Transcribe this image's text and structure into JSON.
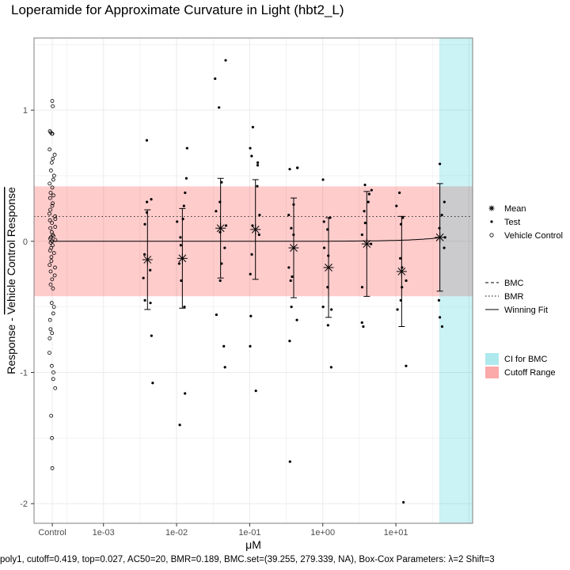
{
  "chart_data": {
    "type": "scatter",
    "title": "Loperamide for Approximate Curvature in Light (hbt2_L)",
    "xlabel": "μM",
    "ylabel_parts": [
      "Response",
      " - ",
      "Vehicle Control Response"
    ],
    "caption": "poly1, cutoff=0.419, top=0.027, AC50=20, BMR=0.189, BMC.set=(39.255, 279.339, NA), Box-Cox Parameters: λ=2 Shift=3",
    "x_scale": "log10",
    "x_ticks": [
      {
        "label": "Control",
        "kind": "control"
      },
      {
        "label": "1e-03",
        "value": 0.001
      },
      {
        "label": "1e-02",
        "value": 0.01
      },
      {
        "label": "1e-01",
        "value": 0.1
      },
      {
        "label": "1e+00",
        "value": 1
      },
      {
        "label": "1e+01",
        "value": 10
      }
    ],
    "y_ticks": [
      1,
      0,
      -1,
      -2
    ],
    "y_tick_labels": [
      "1",
      "0",
      "-1",
      "-2"
    ],
    "ylim": [
      -2.15,
      1.55
    ],
    "xlim_log10": [
      -3.95,
      2.05
    ],
    "control_log10": -3.7,
    "grid": true,
    "cutoff_range": [
      -0.419,
      0.419
    ],
    "bmr": 0.189,
    "bmc": 279.339,
    "ci_for_bmc": [
      39.255,
      300
    ],
    "winning_fit": {
      "model": "poly1",
      "top": 0.027,
      "at_conc": 39.255
    },
    "vehicle_control": [
      1.07,
      1.03,
      0.84,
      0.83,
      0.82,
      0.82,
      0.7,
      0.66,
      0.63,
      0.6,
      0.54,
      0.5,
      0.47,
      0.44,
      0.41,
      0.37,
      0.35,
      0.33,
      0.29,
      0.27,
      0.24,
      0.21,
      0.19,
      0.17,
      0.16,
      0.14,
      0.11,
      0.1,
      0.07,
      0.05,
      0.04,
      0.03,
      0.02,
      0.01,
      0.0,
      -0.01,
      -0.03,
      -0.05,
      -0.07,
      -0.09,
      -0.12,
      -0.15,
      -0.18,
      -0.2,
      -0.23,
      -0.26,
      -0.29,
      -0.33,
      -0.36,
      -0.47,
      -0.5,
      -0.55,
      -0.6,
      -0.67,
      -0.7,
      -0.74,
      -0.85,
      -0.95,
      -1.0,
      -1.05,
      -1.12,
      -1.33,
      -1.5,
      -1.73
    ],
    "test_groups": [
      {
        "conc": 0.004,
        "mean": -0.14,
        "err": 0.38,
        "points": [
          0.77,
          0.32,
          0.3,
          0.22,
          0.13,
          -0.1,
          -0.22,
          -0.28,
          -0.45,
          -0.47,
          -0.72,
          -1.08
        ]
      },
      {
        "conc": 0.012,
        "mean": -0.13,
        "err": 0.38,
        "points": [
          0.71,
          0.48,
          0.37,
          0.27,
          0.17,
          0.15,
          0.03,
          -0.03,
          -0.17,
          -0.3,
          -0.5,
          -1.16,
          -1.4
        ]
      },
      {
        "conc": 0.04,
        "mean": 0.1,
        "err": 0.38,
        "points": [
          1.38,
          1.24,
          1.02,
          0.45,
          0.3,
          0.23,
          0.12,
          0.07,
          -0.05,
          -0.17,
          -0.3,
          -0.56,
          -0.8,
          -0.96
        ]
      },
      {
        "conc": 0.12,
        "mean": 0.09,
        "err": 0.38,
        "points": [
          0.87,
          0.71,
          0.65,
          0.6,
          0.58,
          0.42,
          0.2,
          0.12,
          0.05,
          -0.1,
          -0.25,
          -0.57,
          -0.8,
          -1.14
        ]
      },
      {
        "conc": 0.4,
        "mean": -0.05,
        "err": 0.38,
        "points": [
          0.56,
          0.56,
          0.55,
          0.28,
          0.2,
          0.1,
          0.05,
          -0.2,
          -0.27,
          -0.3,
          -0.5,
          -0.6,
          -0.76,
          -1.68
        ]
      },
      {
        "conc": 1.2,
        "mean": -0.2,
        "err": 0.38,
        "points": [
          0.47,
          0.18,
          0.15,
          0.09,
          -0.05,
          -0.11,
          -0.35,
          -0.5,
          -0.52,
          -0.64,
          -0.96
        ]
      },
      {
        "conc": 4.0,
        "mean": -0.02,
        "err": 0.4,
        "points": [
          0.43,
          0.39,
          0.36,
          0.3,
          0.23,
          0.14,
          0.05,
          -0.02,
          -0.35,
          -0.62,
          -0.65
        ]
      },
      {
        "conc": 12.0,
        "mean": -0.23,
        "err": 0.42,
        "points": [
          0.37,
          0.27,
          0.18,
          0.13,
          -0.13,
          -0.2,
          -0.3,
          -0.35,
          -0.45,
          -0.52,
          -0.95,
          -1.99
        ]
      },
      {
        "conc": 40.0,
        "mean": 0.03,
        "err": 0.41,
        "points": [
          0.59,
          0.3,
          0.2,
          0.1,
          0.03,
          -0.05,
          -0.45,
          -0.58,
          -0.65
        ]
      }
    ],
    "legends": [
      {
        "items": [
          {
            "label": "Mean",
            "symbol": "asterisk"
          },
          {
            "label": "Test",
            "symbol": "dot"
          },
          {
            "label": "Vehicle Control",
            "symbol": "circle"
          }
        ]
      },
      {
        "items": [
          {
            "label": "BMC",
            "symbol": "dashed"
          },
          {
            "label": "BMR",
            "symbol": "dotted"
          },
          {
            "label": "Winning Fit",
            "symbol": "solid"
          }
        ]
      },
      {
        "items": [
          {
            "label": "CI for BMC",
            "symbol": "fill",
            "color": "#aee9ee"
          },
          {
            "label": "Cutoff Range",
            "symbol": "fill",
            "color": "#fba9a9"
          }
        ]
      }
    ],
    "colors": {
      "cutoff_fill": "#ff0000",
      "ci_fill": "#13c2cf",
      "panel_border": "#7f7f7f",
      "grid": "#ebebeb",
      "points": "#000000"
    }
  }
}
